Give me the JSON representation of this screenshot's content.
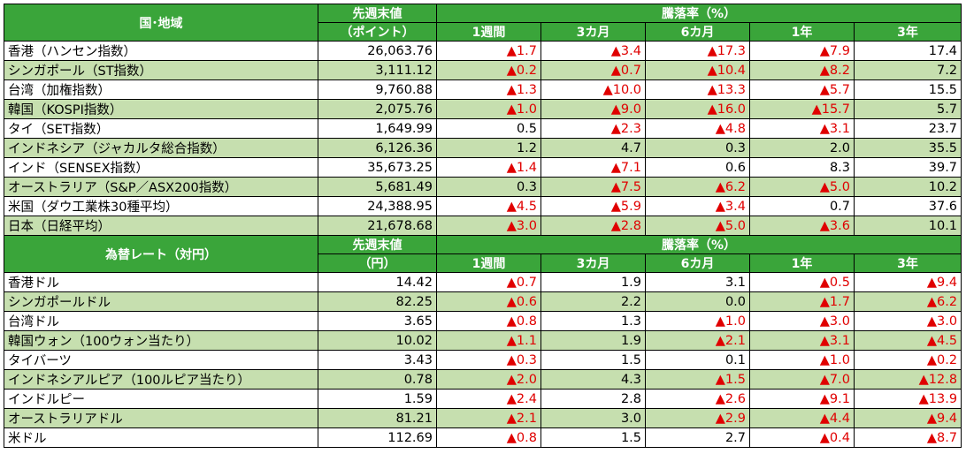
{
  "sections": [
    {
      "header": {
        "name_col": "国･地域",
        "value_col_line1": "先週末値",
        "value_col_line2": "（ポイント）",
        "change_group": "騰落率（%）",
        "periods": [
          "1週間",
          "3カ月",
          "6カ月",
          "1年",
          "3年"
        ]
      },
      "rows": [
        {
          "name": "香港（ハンセン指数）",
          "value": "26,063.76",
          "changes": [
            "▲1.7",
            "▲3.4",
            "▲17.3",
            "▲7.9",
            "17.4"
          ]
        },
        {
          "name": "シンガポール（ST指数）",
          "value": "3,111.12",
          "changes": [
            "▲0.2",
            "▲0.7",
            "▲10.4",
            "▲8.2",
            "7.2"
          ]
        },
        {
          "name": "台湾（加権指数）",
          "value": "9,760.88",
          "changes": [
            "▲1.3",
            "▲10.0",
            "▲13.3",
            "▲5.7",
            "15.5"
          ]
        },
        {
          "name": "韓国（KOSPI指数）",
          "value": "2,075.76",
          "changes": [
            "▲1.0",
            "▲9.0",
            "▲16.0",
            "▲15.7",
            "5.7"
          ]
        },
        {
          "name": "タイ（SET指数）",
          "value": "1,649.99",
          "changes": [
            "0.5",
            "▲2.3",
            "▲4.8",
            "▲3.1",
            "23.7"
          ]
        },
        {
          "name": "インドネシア（ジャカルタ総合指数）",
          "value": "6,126.36",
          "changes": [
            "1.2",
            "4.7",
            "0.3",
            "2.0",
            "35.5"
          ]
        },
        {
          "name": "インド（SENSEX指数）",
          "value": "35,673.25",
          "changes": [
            "▲1.4",
            "▲7.1",
            "0.6",
            "8.3",
            "39.7"
          ]
        },
        {
          "name": "オーストラリア（S&P／ASX200指数）",
          "value": "5,681.49",
          "changes": [
            "0.3",
            "▲7.5",
            "▲6.2",
            "▲5.0",
            "10.2"
          ]
        },
        {
          "name": "米国（ダウ工業株30種平均）",
          "value": "24,388.95",
          "changes": [
            "▲4.5",
            "▲5.9",
            "▲3.4",
            "0.7",
            "37.6"
          ]
        },
        {
          "name": "日本（日経平均）",
          "value": "21,678.68",
          "changes": [
            "▲3.0",
            "▲2.8",
            "▲5.0",
            "▲3.6",
            "10.1"
          ]
        }
      ]
    },
    {
      "header": {
        "name_col": "為替レート（対円）",
        "value_col_line1": "先週末値",
        "value_col_line2": "（円）",
        "change_group": "騰落率（%）",
        "periods": [
          "1週間",
          "3カ月",
          "6カ月",
          "1年",
          "3年"
        ]
      },
      "rows": [
        {
          "name": "香港ドル",
          "value": "14.42",
          "changes": [
            "▲0.7",
            "1.9",
            "3.1",
            "▲0.5",
            "▲9.4"
          ]
        },
        {
          "name": "シンガポールドル",
          "value": "82.25",
          "changes": [
            "▲0.6",
            "2.2",
            "0.0",
            "▲1.7",
            "▲6.2"
          ]
        },
        {
          "name": "台湾ドル",
          "value": "3.65",
          "changes": [
            "▲0.8",
            "1.3",
            "▲1.0",
            "▲3.0",
            "▲3.0"
          ]
        },
        {
          "name": "韓国ウォン（100ウォン当たり）",
          "value": "10.02",
          "changes": [
            "▲1.1",
            "1.9",
            "▲2.1",
            "▲3.1",
            "▲4.5"
          ]
        },
        {
          "name": "タイバーツ",
          "value": "3.43",
          "changes": [
            "▲0.3",
            "1.5",
            "0.1",
            "▲1.0",
            "▲0.2"
          ]
        },
        {
          "name": "インドネシアルピア（100ルピア当たり）",
          "value": "0.78",
          "changes": [
            "▲2.0",
            "4.3",
            "▲1.5",
            "▲7.0",
            "▲12.8"
          ]
        },
        {
          "name": "インドルピー",
          "value": "1.59",
          "changes": [
            "▲2.4",
            "2.8",
            "▲2.6",
            "▲9.1",
            "▲13.9"
          ]
        },
        {
          "name": "オーストラリアドル",
          "value": "81.21",
          "changes": [
            "▲2.1",
            "3.0",
            "▲2.9",
            "▲4.4",
            "▲9.4"
          ]
        },
        {
          "name": "米ドル",
          "value": "112.69",
          "changes": [
            "▲0.8",
            "1.5",
            "2.7",
            "▲0.4",
            "▲8.7"
          ]
        }
      ]
    }
  ],
  "colors": {
    "header_bg": "#3aa53a",
    "header_text": "#ffffff",
    "alt_row_bg": "#c6dfaf",
    "negative_text": "#e00000"
  }
}
